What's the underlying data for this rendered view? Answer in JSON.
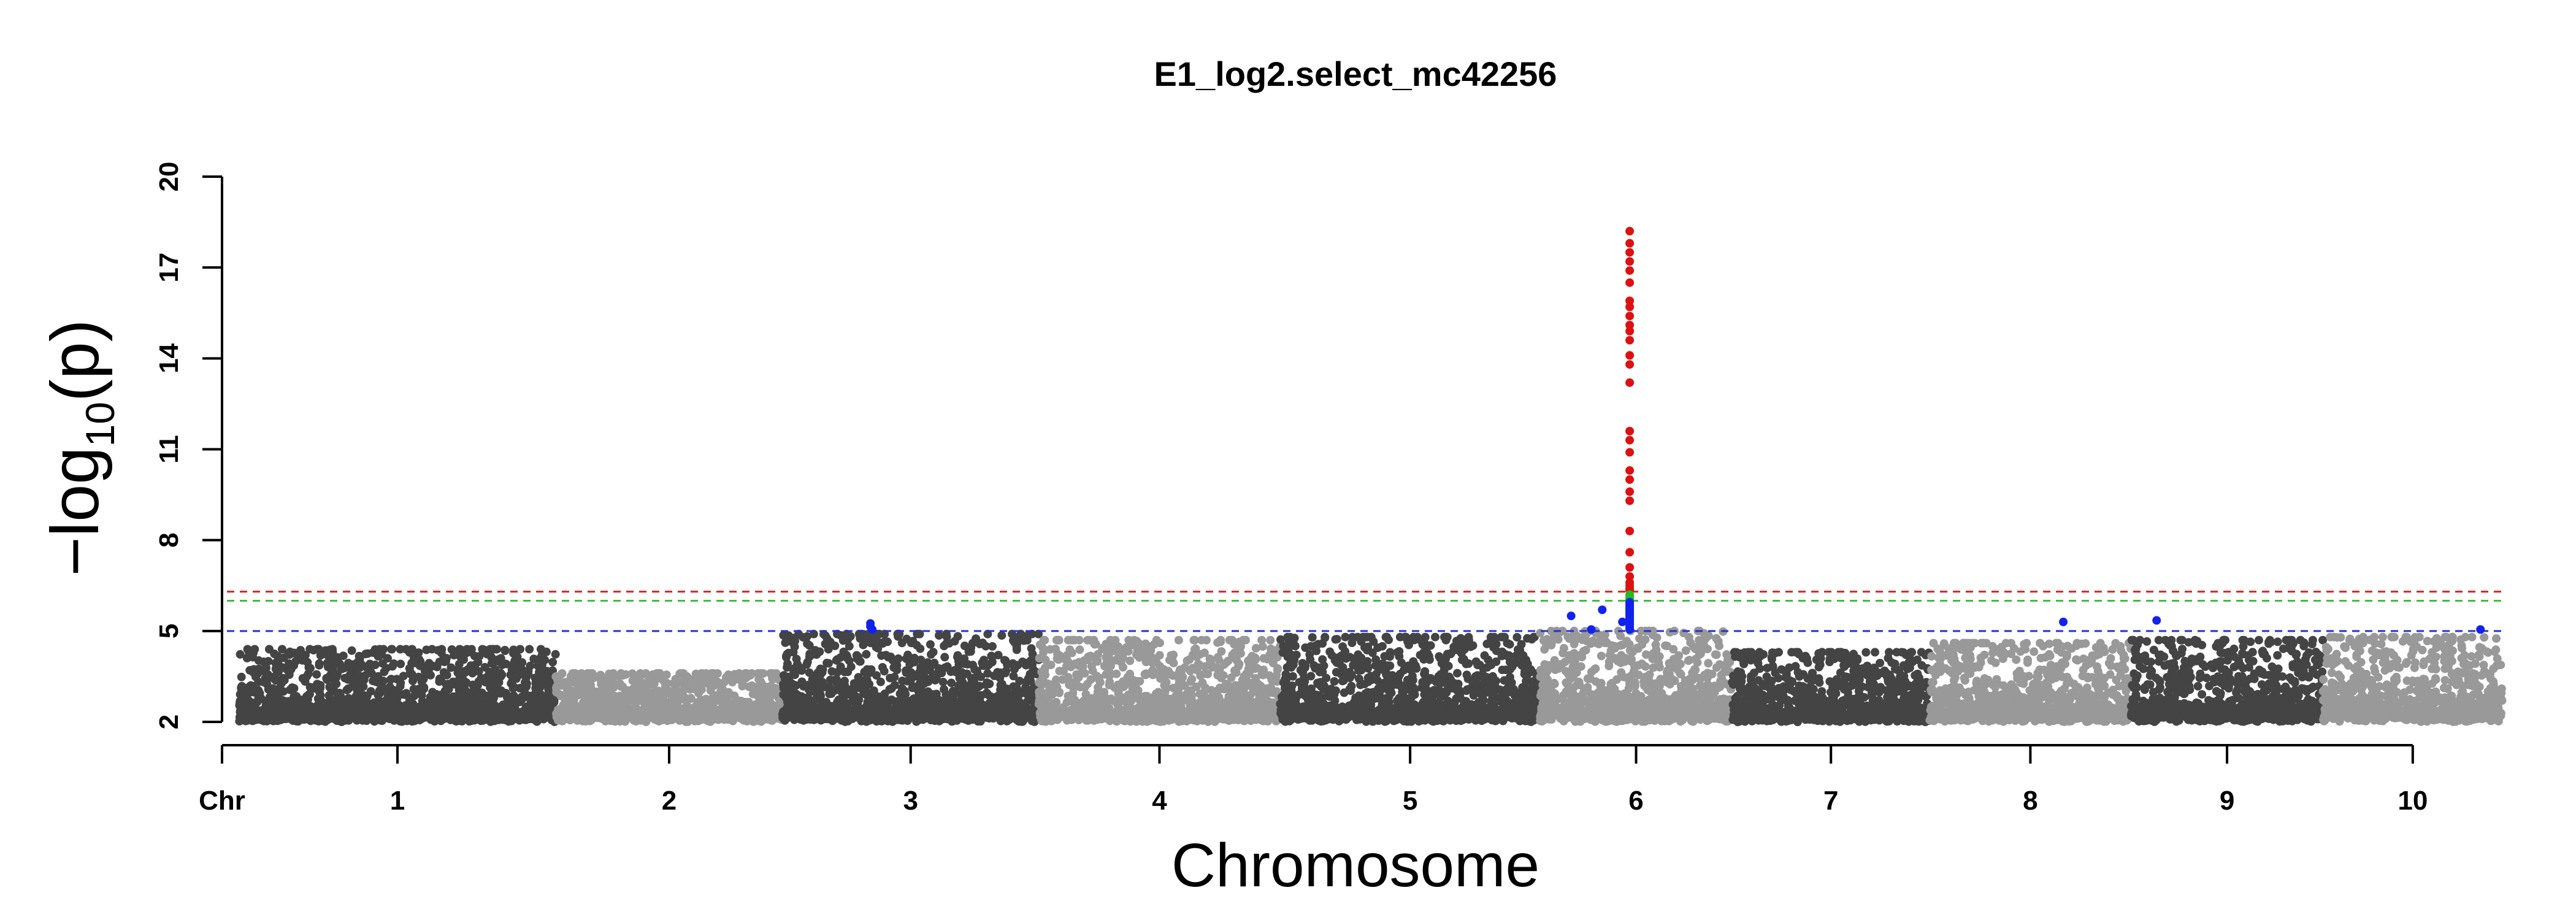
{
  "chart_data": {
    "type": "scatter",
    "title": "E1_log2.select_mc42256",
    "xlabel": "Chromosome",
    "ylabel": {
      "prefix": "−log",
      "subscript": "10",
      "suffix": "(p)"
    },
    "x_axis_prefix_label": "Chr",
    "categories": [
      "1",
      "2",
      "3",
      "4",
      "5",
      "6",
      "7",
      "8",
      "9",
      "10"
    ],
    "yticks": [
      "2",
      "5",
      "8",
      "11",
      "14",
      "17",
      "20"
    ],
    "ylim": [
      2,
      20
    ],
    "grid": false,
    "chromosome_colors": [
      "#444444",
      "#999999"
    ],
    "chromosomes": [
      {
        "name": "1",
        "start": 0,
        "end": 1.73,
        "base_max": 4.4
      },
      {
        "name": "2",
        "start": 1.73,
        "end": 2.97,
        "base_max": 3.6
      },
      {
        "name": "3",
        "start": 2.97,
        "end": 4.37,
        "base_max": 4.9
      },
      {
        "name": "4",
        "start": 4.37,
        "end": 5.69,
        "base_max": 4.7
      },
      {
        "name": "5",
        "start": 5.69,
        "end": 7.11,
        "base_max": 4.8
      },
      {
        "name": "6",
        "start": 7.11,
        "end": 8.16,
        "base_max": 5.0
      },
      {
        "name": "7",
        "start": 8.16,
        "end": 9.24,
        "base_max": 4.3
      },
      {
        "name": "8",
        "start": 9.24,
        "end": 10.34,
        "base_max": 4.6
      },
      {
        "name": "9",
        "start": 10.34,
        "end": 11.39,
        "base_max": 4.7
      },
      {
        "name": "10",
        "start": 11.39,
        "end": 12.37,
        "base_max": 4.8
      }
    ],
    "thresholds": [
      {
        "value": 6.3,
        "color": "#dd2222"
      },
      {
        "value": 6.0,
        "color": "#44bb44"
      },
      {
        "value": 5.0,
        "color": "#2233dd"
      }
    ],
    "highlight_colors": {
      "above_6_3": "#dd1111",
      "above_6_0": "#22bb22",
      "above_5_0": "#1122ee"
    },
    "peak": {
      "x": 7.6,
      "values": [
        18.2,
        17.8,
        17.5,
        17.2,
        16.9,
        16.5,
        15.9,
        15.7,
        15.4,
        15.1,
        14.9,
        14.6,
        14.1,
        13.8,
        13.2,
        11.6,
        11.3,
        10.9,
        10.3,
        10.0,
        9.6,
        9.3,
        8.3,
        7.6,
        7.1,
        6.8,
        6.6,
        6.5,
        6.4,
        6.35,
        6.2,
        6.15,
        6.1,
        6.05,
        6.0,
        5.95,
        5.9,
        5.85,
        5.8,
        5.75,
        5.7,
        5.65,
        5.6,
        5.55,
        5.5,
        5.45,
        5.4,
        5.35,
        5.3,
        5.25,
        5.2,
        5.15,
        5.1,
        5.05
      ]
    },
    "significant_points": [
      {
        "x": 3.45,
        "y": 5.25
      },
      {
        "x": 3.45,
        "y": 5.15
      },
      {
        "x": 3.46,
        "y": 5.05
      },
      {
        "x": 7.28,
        "y": 5.5
      },
      {
        "x": 7.39,
        "y": 5.05
      },
      {
        "x": 7.45,
        "y": 5.7
      },
      {
        "x": 7.56,
        "y": 5.3
      },
      {
        "x": 9.97,
        "y": 5.3
      },
      {
        "x": 10.48,
        "y": 5.35
      },
      {
        "x": 12.25,
        "y": 5.05
      }
    ]
  }
}
